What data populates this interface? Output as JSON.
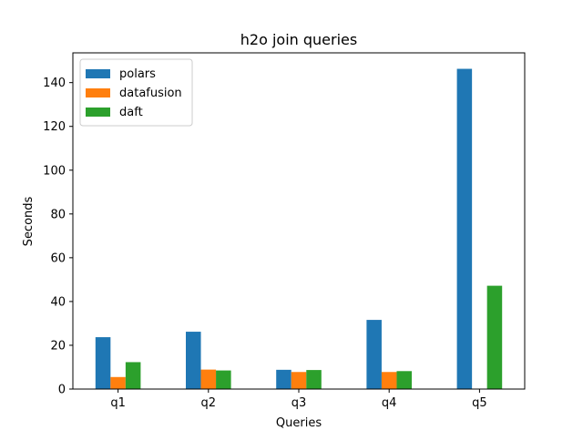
{
  "chart_data": {
    "type": "bar",
    "title": "h2o join queries",
    "xlabel": "Queries",
    "ylabel": "Seconds",
    "categories": [
      "q1",
      "q2",
      "q3",
      "q4",
      "q5"
    ],
    "series": [
      {
        "name": "polars",
        "color": "#1f77b4",
        "values": [
          23.7,
          26.2,
          8.8,
          31.6,
          146.3
        ]
      },
      {
        "name": "datafusion",
        "color": "#ff7f0e",
        "values": [
          5.5,
          8.9,
          7.8,
          7.8,
          0
        ]
      },
      {
        "name": "daft",
        "color": "#2ca02c",
        "values": [
          12.3,
          8.5,
          8.7,
          8.2,
          47.2
        ]
      }
    ],
    "ylim": [
      0,
      153.6
    ],
    "yticks": [
      0,
      20,
      40,
      60,
      80,
      100,
      120,
      140
    ],
    "legend_position": "top-left",
    "grid": false
  }
}
